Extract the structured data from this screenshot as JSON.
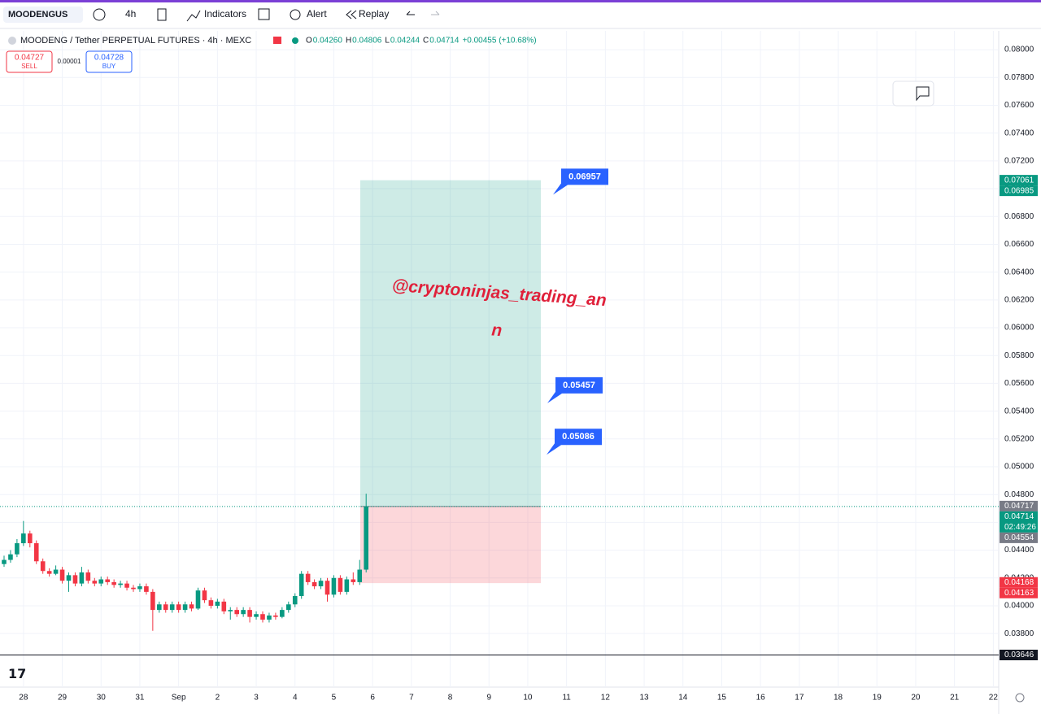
{
  "toolbar": {
    "symbol": "MOODENGUS",
    "interval": "4h",
    "indicators": "Indicators",
    "alert": "Alert",
    "replay": "Replay"
  },
  "legend": {
    "title": "MOODENG / Tether PERPETUAL FUTURES · 4h · MEXC",
    "ohlc": [
      {
        "key": "O",
        "value": "0.04260"
      },
      {
        "key": "H",
        "value": "0.04806"
      },
      {
        "key": "L",
        "value": "0.04244"
      },
      {
        "key": "C",
        "value": "0.04714"
      }
    ],
    "change": "+0.00455 (+10.68%)"
  },
  "trade": {
    "sell_price": "0.04727",
    "sell": "SELL",
    "spread": "0.00001",
    "buy_price": "0.04728",
    "buy": "BUY"
  },
  "watermark": [
    "@cryptoninjas_trading_an",
    "n"
  ],
  "chart_data": {
    "type": "candlestick",
    "up_color": "#089981",
    "down_color": "#f23645",
    "open": [
      0.043,
      0.0433,
      0.0437,
      0.0445,
      0.0452,
      0.0445,
      0.0432,
      0.0425,
      0.0423,
      0.0426,
      0.0418,
      0.0422,
      0.0416,
      0.0424,
      0.0418,
      0.0416,
      0.0419,
      0.0417,
      0.0415,
      0.0416,
      0.0413,
      0.0412,
      0.0414,
      0.041,
      0.0397,
      0.0401,
      0.0397,
      0.0401,
      0.0397,
      0.0401,
      0.0398,
      0.0411,
      0.0404,
      0.04,
      0.0403,
      0.0396,
      0.0397,
      0.0394,
      0.0397,
      0.0392,
      0.0394,
      0.039,
      0.0393,
      0.0392,
      0.0397,
      0.0401,
      0.0407,
      0.0423,
      0.0417,
      0.0414,
      0.0418,
      0.0408,
      0.042,
      0.041,
      0.0419,
      0.0417,
      0.0426
    ],
    "high": [
      0.0436,
      0.044,
      0.0448,
      0.0461,
      0.0454,
      0.0447,
      0.0434,
      0.0427,
      0.0429,
      0.0428,
      0.0424,
      0.0424,
      0.0428,
      0.0426,
      0.042,
      0.0421,
      0.0421,
      0.0419,
      0.0418,
      0.0418,
      0.0415,
      0.0416,
      0.0416,
      0.0412,
      0.0403,
      0.0403,
      0.0403,
      0.0403,
      0.0403,
      0.0403,
      0.0413,
      0.0413,
      0.0406,
      0.0405,
      0.0405,
      0.0399,
      0.0399,
      0.0399,
      0.0399,
      0.0396,
      0.0396,
      0.0395,
      0.0395,
      0.0399,
      0.0403,
      0.0409,
      0.0425,
      0.0425,
      0.0419,
      0.042,
      0.042,
      0.0422,
      0.0422,
      0.0421,
      0.0424,
      0.0433,
      0.04806
    ],
    "low": [
      0.0428,
      0.0431,
      0.0435,
      0.0443,
      0.0442,
      0.043,
      0.0423,
      0.0421,
      0.0422,
      0.0416,
      0.041,
      0.0414,
      0.0414,
      0.0416,
      0.0414,
      0.0414,
      0.0415,
      0.0413,
      0.0413,
      0.0411,
      0.041,
      0.041,
      0.0408,
      0.0382,
      0.0395,
      0.0395,
      0.0395,
      0.0395,
      0.0395,
      0.0396,
      0.0397,
      0.0402,
      0.0398,
      0.0398,
      0.0394,
      0.039,
      0.0392,
      0.0392,
      0.0388,
      0.039,
      0.0388,
      0.0388,
      0.039,
      0.0391,
      0.0395,
      0.0399,
      0.0405,
      0.0415,
      0.0412,
      0.0412,
      0.0403,
      0.0406,
      0.0408,
      0.0408,
      0.0415,
      0.0415,
      0.0424
    ],
    "close": [
      0.0433,
      0.0437,
      0.0445,
      0.0452,
      0.0445,
      0.0432,
      0.0425,
      0.0423,
      0.0426,
      0.0418,
      0.0422,
      0.0416,
      0.0424,
      0.0418,
      0.0416,
      0.0419,
      0.0417,
      0.0415,
      0.0416,
      0.0413,
      0.0412,
      0.0414,
      0.041,
      0.0397,
      0.0401,
      0.0397,
      0.0401,
      0.0397,
      0.0401,
      0.0398,
      0.0411,
      0.0404,
      0.04,
      0.0403,
      0.0396,
      0.0397,
      0.0394,
      0.0397,
      0.0392,
      0.0394,
      0.039,
      0.0393,
      0.0392,
      0.0397,
      0.0401,
      0.0407,
      0.0423,
      0.0417,
      0.0414,
      0.0418,
      0.0408,
      0.042,
      0.041,
      0.0419,
      0.0417,
      0.0426,
      0.04714
    ],
    "x_labels": [
      "28",
      "29",
      "30",
      "31",
      "Sep",
      "2",
      "3",
      "4",
      "5",
      "6",
      "7",
      "8",
      "9",
      "10",
      "11",
      "12",
      "13",
      "14",
      "15",
      "16",
      "17",
      "18",
      "19",
      "20",
      "21",
      "22"
    ],
    "ylim": [
      0.03415,
      0.08135
    ],
    "yticks": [
      {
        "value": 0.038,
        "label": "0.03800"
      },
      {
        "value": 0.04,
        "label": "0.04000"
      },
      {
        "value": 0.042,
        "label": "0.04200"
      },
      {
        "value": 0.044,
        "label": "0.04400"
      },
      {
        "value": 0.046,
        "label": "0.04600"
      },
      {
        "value": 0.048,
        "label": "0.04800"
      },
      {
        "value": 0.05,
        "label": "0.05000"
      },
      {
        "value": 0.052,
        "label": "0.05200"
      },
      {
        "value": 0.054,
        "label": "0.05400"
      },
      {
        "value": 0.056,
        "label": "0.05600"
      },
      {
        "value": 0.058,
        "label": "0.05800"
      },
      {
        "value": 0.06,
        "label": "0.06000"
      },
      {
        "value": 0.062,
        "label": "0.06200"
      },
      {
        "value": 0.064,
        "label": "0.06400"
      },
      {
        "value": 0.066,
        "label": "0.06600"
      },
      {
        "value": 0.068,
        "label": "0.06800"
      },
      {
        "value": 0.07,
        "label": "0.07000"
      },
      {
        "value": 0.072,
        "label": "0.07200"
      },
      {
        "value": 0.074,
        "label": "0.07400"
      },
      {
        "value": 0.076,
        "label": "0.07600"
      },
      {
        "value": 0.078,
        "label": "0.07800"
      },
      {
        "value": 0.08,
        "label": "0.08000"
      }
    ],
    "grid": true,
    "position": {
      "target": 0.07061,
      "entry": 0.04714,
      "stop": 0.04163
    },
    "callouts": [
      0.06957,
      0.05457,
      0.05086
    ],
    "horizontal_line": 0.03646,
    "price_tags": [
      {
        "value": 0.07061,
        "color": "#089981"
      },
      {
        "value": 0.06985,
        "color": "#089981"
      },
      {
        "value": 0.04717,
        "color": "#787b86"
      },
      {
        "value": 0.04714,
        "color": "#089981",
        "countdown": "02:49:26"
      },
      {
        "value": 0.04554,
        "color": "#787b86"
      },
      {
        "value": 0.04168,
        "color": "#f23645"
      },
      {
        "value": 0.04163,
        "color": "#f23645"
      },
      {
        "value": 0.03646,
        "color": "#131722"
      }
    ]
  }
}
